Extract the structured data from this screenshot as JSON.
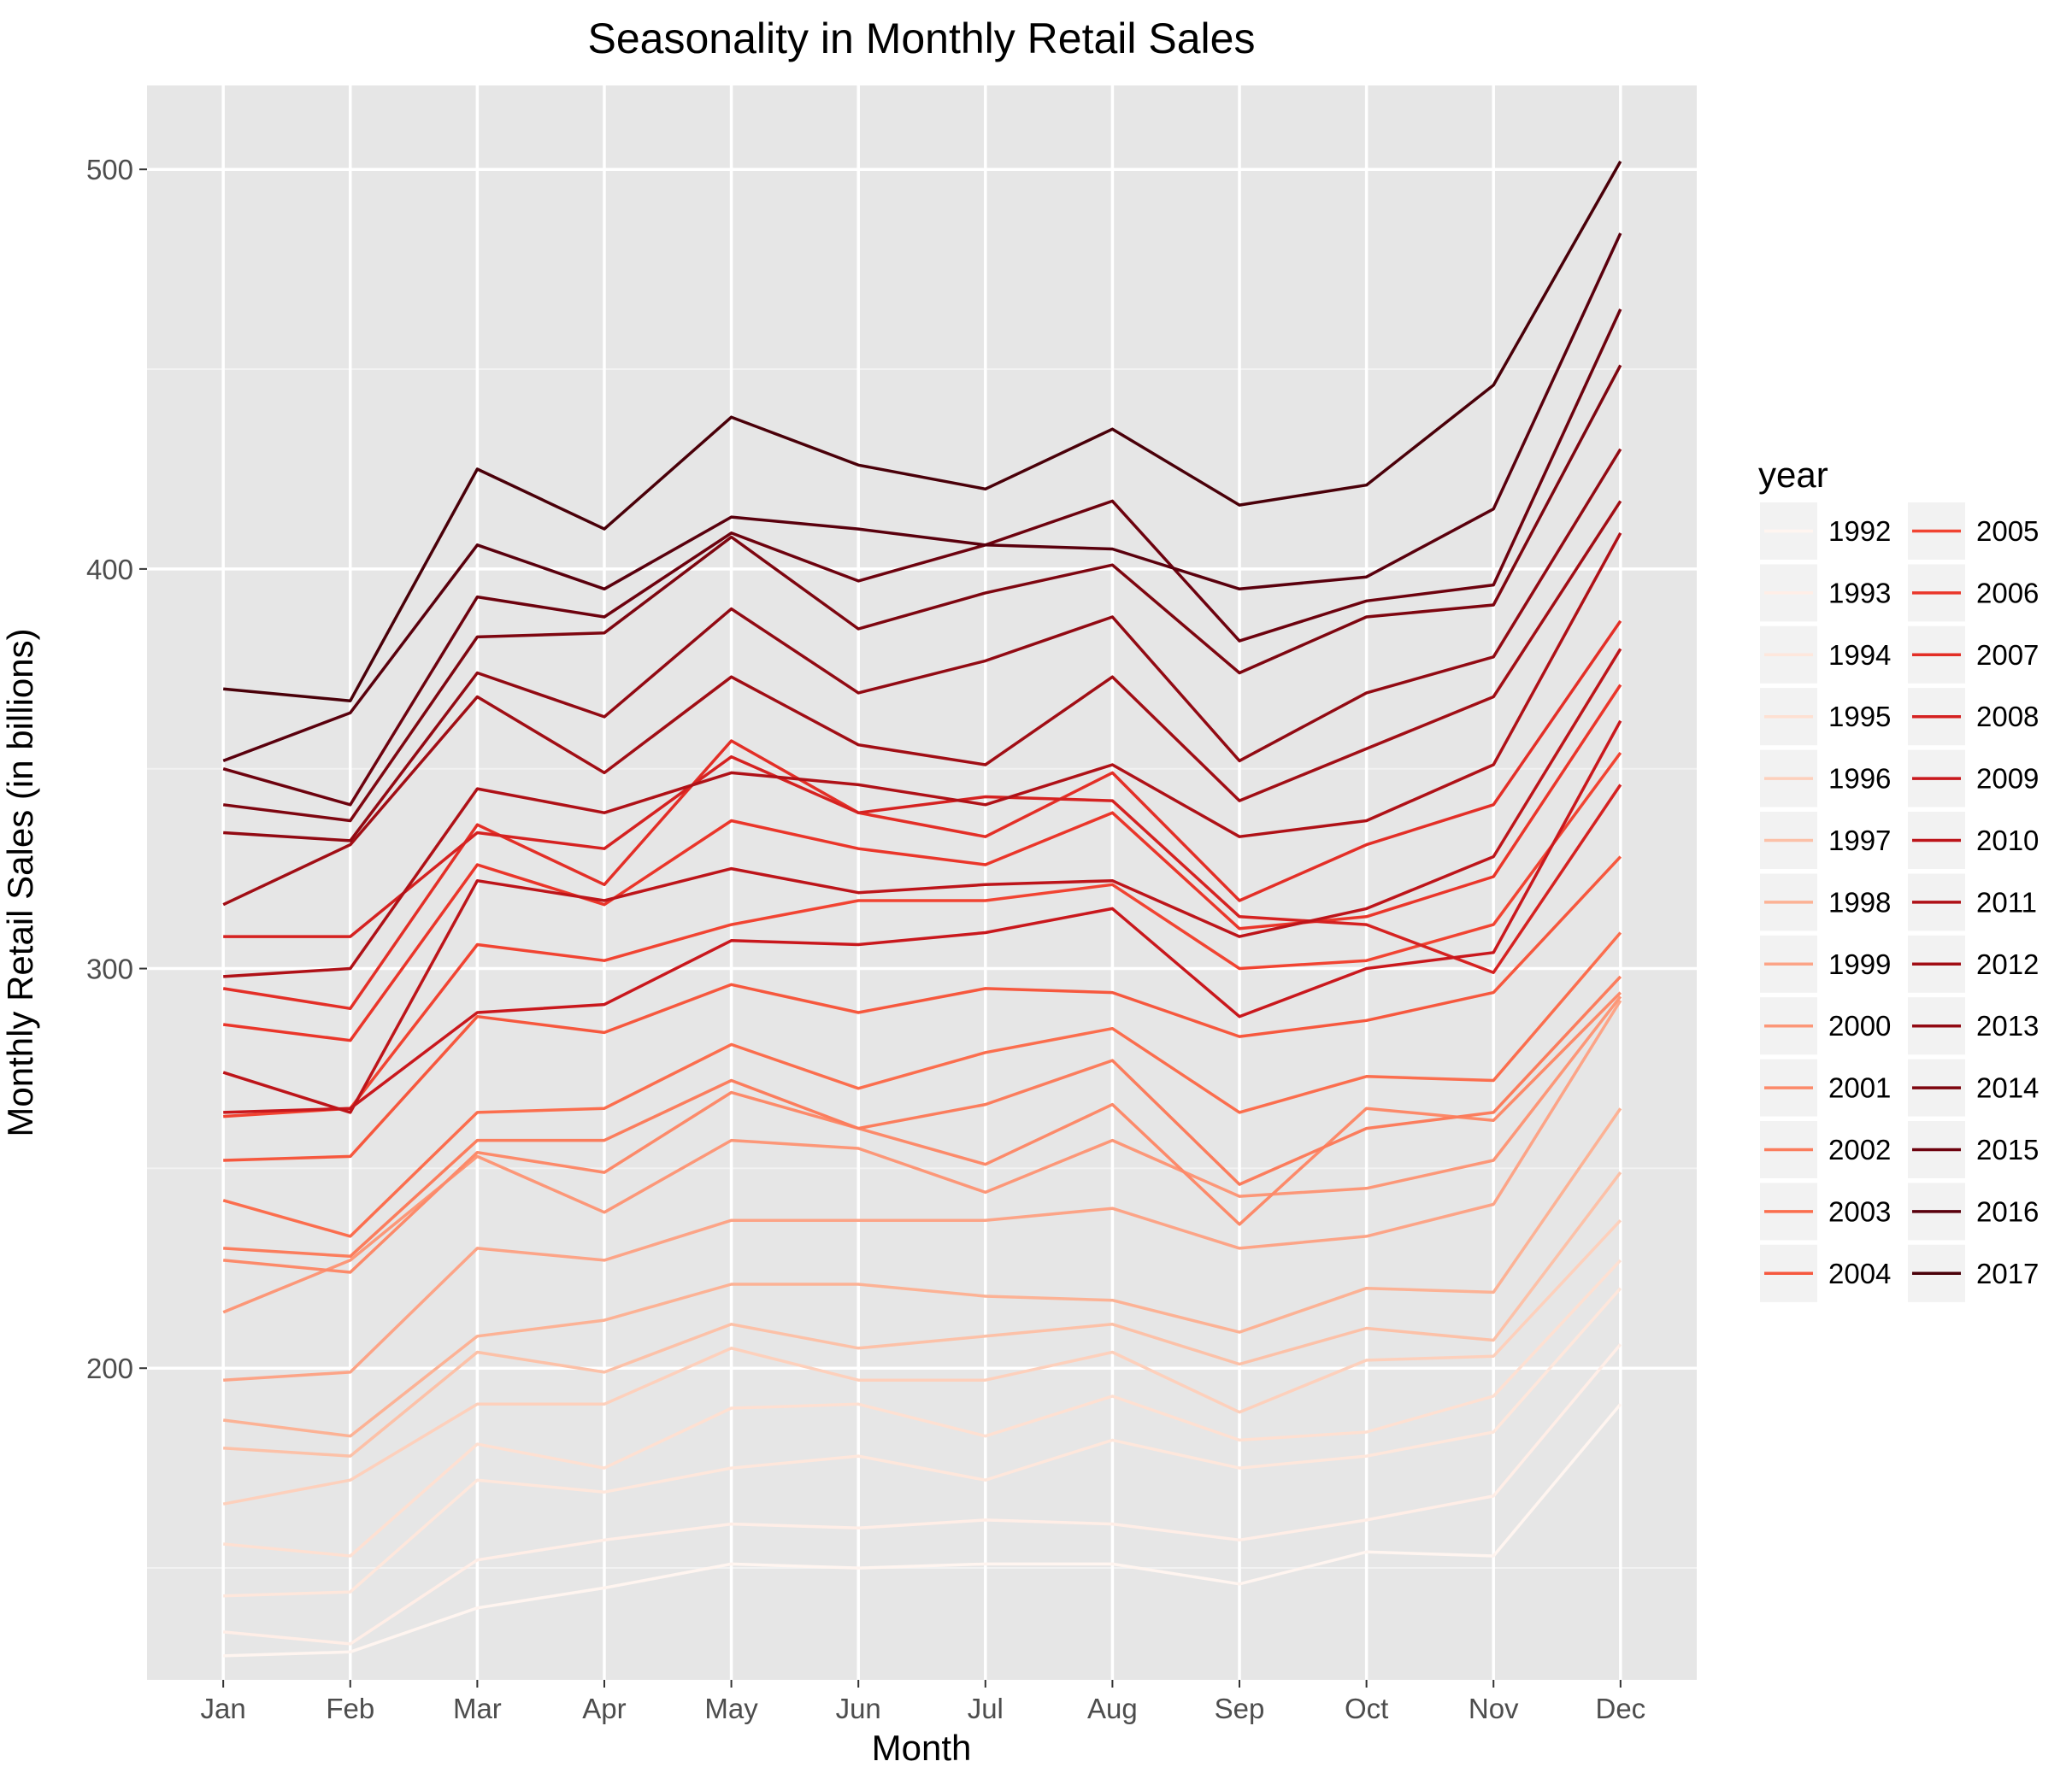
{
  "chart_data": {
    "type": "line",
    "title": "Seasonality in Monthly Retail Sales",
    "xlabel": "Month",
    "ylabel": "Monthly Retail Sales (in billions)",
    "categories": [
      "Jan",
      "Feb",
      "Mar",
      "Apr",
      "May",
      "Jun",
      "Jul",
      "Aug",
      "Sep",
      "Oct",
      "Nov",
      "Dec"
    ],
    "ylim": [
      122,
      521
    ],
    "y_ticks": [
      200,
      300,
      400,
      500
    ],
    "grid": true,
    "legend": {
      "title": "year",
      "position": "right",
      "columns": 2
    },
    "series": [
      {
        "name": "1992",
        "color": "#fff5f0",
        "values": [
          128,
          129,
          140,
          145,
          151,
          150,
          151,
          151,
          146,
          154,
          153,
          191
        ]
      },
      {
        "name": "1993",
        "color": "#ffeee7",
        "values": [
          134,
          131,
          152,
          157,
          161,
          160,
          162,
          161,
          157,
          162,
          168,
          206
        ]
      },
      {
        "name": "1994",
        "color": "#fee7dc",
        "values": [
          143,
          144,
          172,
          169,
          175,
          178,
          172,
          182,
          175,
          178,
          184,
          220
        ]
      },
      {
        "name": "1995",
        "color": "#fee0d2",
        "values": [
          156,
          153,
          181,
          175,
          190,
          191,
          183,
          193,
          182,
          184,
          193,
          227
        ]
      },
      {
        "name": "1996",
        "color": "#fdd0bc",
        "values": [
          166,
          172,
          191,
          191,
          205,
          197,
          197,
          204,
          189,
          202,
          203,
          237
        ]
      },
      {
        "name": "1997",
        "color": "#fcc1a8",
        "values": [
          180,
          178,
          204,
          199,
          211,
          205,
          208,
          211,
          201,
          210,
          207,
          249
        ]
      },
      {
        "name": "1998",
        "color": "#fcb295",
        "values": [
          187,
          183,
          208,
          212,
          221,
          221,
          218,
          217,
          209,
          220,
          219,
          265
        ]
      },
      {
        "name": "1999",
        "color": "#fca487",
        "values": [
          197,
          199,
          230,
          227,
          237,
          237,
          237,
          240,
          230,
          233,
          241,
          292
        ]
      },
      {
        "name": "2000",
        "color": "#fc9778",
        "values": [
          214,
          227,
          253,
          239,
          257,
          255,
          244,
          257,
          243,
          245,
          252,
          293
        ]
      },
      {
        "name": "2001",
        "color": "#fc8a6a",
        "values": [
          227,
          224,
          254,
          249,
          269,
          260,
          251,
          266,
          236,
          265,
          262,
          294
        ]
      },
      {
        "name": "2002",
        "color": "#fb7d5d",
        "values": [
          230,
          228,
          257,
          257,
          272,
          260,
          266,
          277,
          246,
          260,
          264,
          298
        ]
      },
      {
        "name": "2003",
        "color": "#fb6e4e",
        "values": [
          242,
          233,
          264,
          265,
          281,
          270,
          279,
          285,
          264,
          273,
          272,
          309
        ]
      },
      {
        "name": "2004",
        "color": "#f6583e",
        "values": [
          252,
          253,
          288,
          284,
          296,
          289,
          295,
          294,
          283,
          287,
          294,
          328
        ]
      },
      {
        "name": "2005",
        "color": "#f14432",
        "values": [
          263,
          265,
          306,
          302,
          311,
          317,
          317,
          321,
          300,
          302,
          311,
          354
        ]
      },
      {
        "name": "2006",
        "color": "#ea362a",
        "values": [
          286,
          282,
          326,
          316,
          337,
          330,
          326,
          339,
          310,
          313,
          323,
          371
        ]
      },
      {
        "name": "2007",
        "color": "#e32f27",
        "values": [
          295,
          290,
          336,
          321,
          357,
          339,
          333,
          349,
          317,
          331,
          341,
          387
        ]
      },
      {
        "name": "2008",
        "color": "#d52221",
        "values": [
          308,
          308,
          334,
          330,
          353,
          339,
          343,
          342,
          313,
          311,
          299,
          346
        ]
      },
      {
        "name": "2009",
        "color": "#c9181d",
        "values": [
          264,
          265,
          289,
          291,
          307,
          306,
          309,
          315,
          288,
          300,
          304,
          362
        ]
      },
      {
        "name": "2010",
        "color": "#bd151a",
        "values": [
          274,
          264,
          322,
          317,
          325,
          319,
          321,
          322,
          308,
          315,
          328,
          380
        ]
      },
      {
        "name": "2011",
        "color": "#af1117",
        "values": [
          298,
          300,
          345,
          339,
          349,
          346,
          341,
          351,
          333,
          337,
          351,
          409
        ]
      },
      {
        "name": "2012",
        "color": "#a10e15",
        "values": [
          316,
          331,
          368,
          349,
          373,
          356,
          351,
          373,
          342,
          355,
          368,
          417
        ]
      },
      {
        "name": "2013",
        "color": "#920a13",
        "values": [
          334,
          332,
          374,
          363,
          390,
          369,
          377,
          388,
          352,
          369,
          378,
          430
        ]
      },
      {
        "name": "2014",
        "color": "#7e0610",
        "values": [
          341,
          337,
          383,
          384,
          408,
          385,
          394,
          401,
          374,
          388,
          391,
          451
        ]
      },
      {
        "name": "2015",
        "color": "#6d020e",
        "values": [
          350,
          341,
          393,
          388,
          409,
          397,
          406,
          417,
          382,
          392,
          396,
          465
        ]
      },
      {
        "name": "2016",
        "color": "#5a000d",
        "values": [
          352,
          364,
          406,
          395,
          413,
          410,
          406,
          405,
          395,
          398,
          415,
          484
        ]
      },
      {
        "name": "2017",
        "color": "#4a0009",
        "values": [
          370,
          367,
          425,
          410,
          438,
          426,
          420,
          435,
          416,
          421,
          446,
          502
        ]
      }
    ]
  }
}
